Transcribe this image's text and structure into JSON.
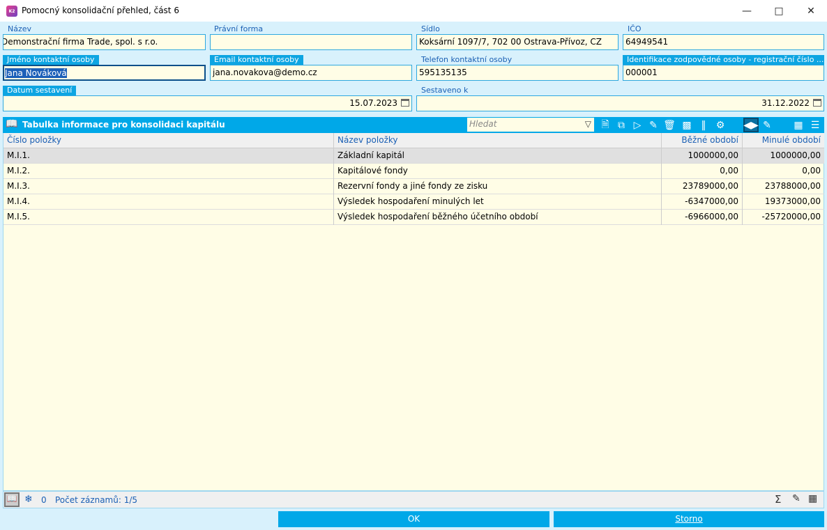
{
  "window": {
    "title": "Pomocný konsolidační přehled, část 6",
    "icon_text": "K2"
  },
  "form": {
    "nazev": {
      "label": "Název",
      "value": "Demonstrační firma Trade, spol. s r.o."
    },
    "pravni_forma": {
      "label": "Právní forma",
      "value": ""
    },
    "sidlo": {
      "label": "Sídlo",
      "value": "Koksární 1097/7, 702 00 Ostrava-Přívoz, CZ"
    },
    "ico": {
      "label": "IČO",
      "value": "64949541"
    },
    "jmeno": {
      "label": "Jméno kontaktní osoby",
      "value": "Jana Nováková"
    },
    "email": {
      "label": "Email kontaktní osoby",
      "value": "jana.novakova@demo.cz"
    },
    "telefon": {
      "label": "Telefon kontaktní osoby",
      "value": "595135135"
    },
    "identifikace": {
      "label": "Identifikace zodpovědné osoby - registrační číslo ...",
      "value": "000001"
    },
    "datum": {
      "label": "Datum sestavení",
      "value": "15.07.2023"
    },
    "sestaveno": {
      "label": "Sestaveno k",
      "value": "31.12.2022"
    }
  },
  "grid": {
    "title": "Tabulka informace pro konsolidaci kapitálu",
    "search_placeholder": "Hledat",
    "columns": [
      "Číslo položky",
      "Název položky",
      "Běžné období",
      "Minulé období"
    ],
    "rows": [
      [
        "M.I.1.",
        "Základní kapitál",
        "1000000,00",
        "1000000,00"
      ],
      [
        "M.I.2.",
        "Kapitálové fondy",
        "0,00",
        "0,00"
      ],
      [
        "M.I.3.",
        "Rezervní fondy a jiné fondy ze zisku",
        "23789000,00",
        "23788000,00"
      ],
      [
        "M.I.4.",
        "Výsledek hospodaření minulých let",
        "-6347000,00",
        "19373000,00"
      ],
      [
        "M.I.5.",
        "Výsledek hospodaření běžného účetního období",
        "-6966000,00",
        "-25720000,00"
      ]
    ]
  },
  "status": {
    "count": "0",
    "records": "Počet záznamů: 1/5"
  },
  "buttons": {
    "ok": "OK",
    "storno": "Storno"
  }
}
